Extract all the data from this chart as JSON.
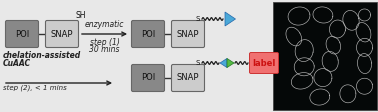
{
  "bg_color": "#e8e8e8",
  "dark_box_color": "#888888",
  "light_box_color": "#cccccc",
  "box_text_color": "#111111",
  "box_border_color": "#666666",
  "triangle_color": "#4aa8d8",
  "diamond_color_left": "#4aa8d8",
  "diamond_color_right": "#55bb44",
  "label_box_color": "#f07070",
  "label_text_color": "#cc1111",
  "enzymatic_text_1": "enzymatic",
  "enzymatic_text_2": "step (1)",
  "enzymatic_text_3": "30 mins",
  "chelation_text_1": "chelation-assisted",
  "chelation_text_2": "CuAAC",
  "chelation_text_3": "step (2), < 1 mins",
  "sh_label": "SH",
  "s_label": "S",
  "label_word": "label",
  "mic_border_color": "#444444"
}
